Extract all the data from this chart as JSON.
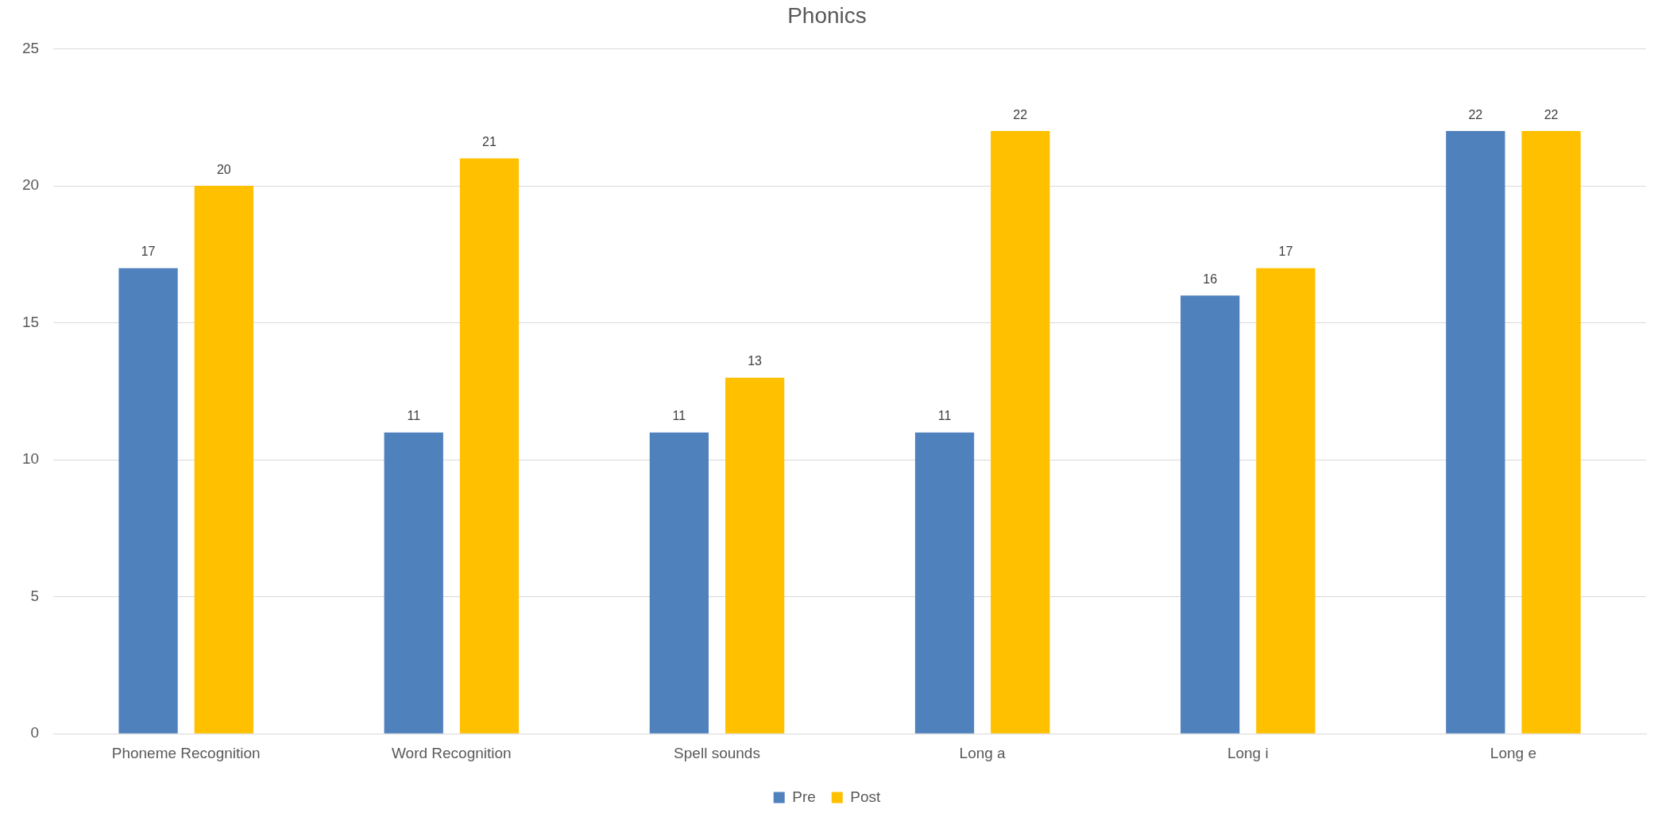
{
  "chart_data": {
    "type": "bar",
    "title": "Phonics",
    "categories": [
      "Phoneme Recognition",
      "Word Recognition",
      "Spell sounds",
      "Long a",
      "Long i",
      "Long e"
    ],
    "series": [
      {
        "name": "Pre",
        "color": "#4f81bd",
        "values": [
          17,
          11,
          11,
          11,
          16,
          22
        ]
      },
      {
        "name": "Post",
        "color": "#ffc000",
        "values": [
          20,
          21,
          13,
          22,
          17,
          22
        ]
      }
    ],
    "ylim": [
      0,
      25
    ],
    "yticks": [
      0,
      5,
      10,
      15,
      20,
      25
    ],
    "grid": "y",
    "legend": "bottom",
    "data_labels": true
  }
}
